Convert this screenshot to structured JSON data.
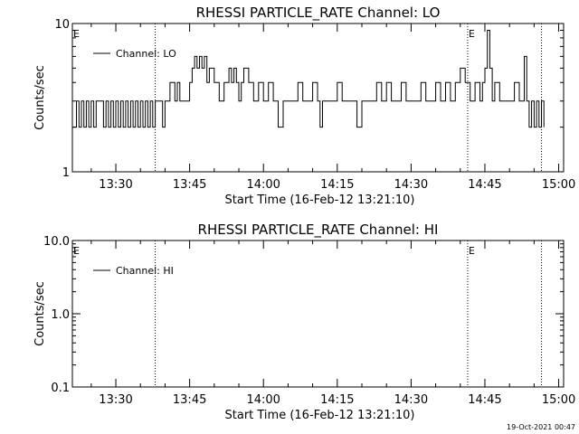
{
  "footer": {
    "timestamp": "19-Oct-2021 00:47"
  },
  "chart_data": [
    {
      "type": "line",
      "title": "RHESSI PARTICLE_RATE Channel: LO",
      "xlabel": "Start Time (16-Feb-12 13:21:10)",
      "ylabel": "Counts/sec",
      "y_scale": "log",
      "xlim": [
        "13:21:10",
        "15:01:00"
      ],
      "ylim": [
        1,
        10
      ],
      "x_tick_labels": [
        "13:30",
        "13:45",
        "14:00",
        "14:15",
        "14:30",
        "14:45",
        "15:00"
      ],
      "y_tick_labels": [
        "1",
        "10"
      ],
      "legend": {
        "position": "top-left",
        "entries": [
          "Channel: LO"
        ]
      },
      "event_marker_label": "E",
      "event_markers": [
        "13:21:10",
        "14:41:30"
      ],
      "vertical_dotted_lines": [
        "13:38:00",
        "14:41:30",
        "14:56:30"
      ],
      "grid": false,
      "series": [
        {
          "name": "Channel: LO",
          "points": [
            [
              "13:21:10",
              2
            ],
            [
              "13:22:00",
              3
            ],
            [
              "13:22:30",
              2
            ],
            [
              "13:23:00",
              3
            ],
            [
              "13:23:30",
              2
            ],
            [
              "13:24:00",
              3
            ],
            [
              "13:24:30",
              2
            ],
            [
              "13:25:00",
              3
            ],
            [
              "13:25:30",
              2
            ],
            [
              "13:26:00",
              3
            ],
            [
              "13:27:00",
              3
            ],
            [
              "13:27:30",
              2
            ],
            [
              "13:28:00",
              3
            ],
            [
              "13:28:30",
              2
            ],
            [
              "13:29:00",
              3
            ],
            [
              "13:29:30",
              2
            ],
            [
              "13:30:00",
              3
            ],
            [
              "13:30:30",
              2
            ],
            [
              "13:31:00",
              3
            ],
            [
              "13:31:30",
              2
            ],
            [
              "13:32:00",
              3
            ],
            [
              "13:32:30",
              2
            ],
            [
              "13:33:00",
              3
            ],
            [
              "13:33:30",
              2
            ],
            [
              "13:34:00",
              3
            ],
            [
              "13:34:30",
              2
            ],
            [
              "13:35:00",
              3
            ],
            [
              "13:35:30",
              2
            ],
            [
              "13:36:00",
              3
            ],
            [
              "13:36:30",
              2
            ],
            [
              "13:37:00",
              3
            ],
            [
              "13:37:30",
              2
            ],
            [
              "13:38:00",
              3
            ],
            [
              "13:39:00",
              3
            ],
            [
              "13:39:30",
              2
            ],
            [
              "13:40:00",
              3
            ],
            [
              "13:41:00",
              4
            ],
            [
              "13:42:00",
              3
            ],
            [
              "13:42:30",
              4
            ],
            [
              "13:43:00",
              3
            ],
            [
              "13:44:00",
              3
            ],
            [
              "13:45:00",
              4
            ],
            [
              "13:45:30",
              5
            ],
            [
              "13:46:00",
              6
            ],
            [
              "13:46:30",
              5
            ],
            [
              "13:47:00",
              6
            ],
            [
              "13:47:30",
              5
            ],
            [
              "13:48:00",
              6
            ],
            [
              "13:48:30",
              4
            ],
            [
              "13:49:00",
              5
            ],
            [
              "13:50:00",
              4
            ],
            [
              "13:51:00",
              3
            ],
            [
              "13:52:00",
              4
            ],
            [
              "13:53:00",
              5
            ],
            [
              "13:53:30",
              4
            ],
            [
              "13:54:00",
              5
            ],
            [
              "13:54:30",
              4
            ],
            [
              "13:55:00",
              3
            ],
            [
              "13:55:30",
              4
            ],
            [
              "13:56:00",
              5
            ],
            [
              "13:57:00",
              4
            ],
            [
              "13:58:00",
              3
            ],
            [
              "13:59:00",
              4
            ],
            [
              "14:00:00",
              3
            ],
            [
              "14:01:00",
              4
            ],
            [
              "14:02:00",
              3
            ],
            [
              "14:03:00",
              2
            ],
            [
              "14:04:00",
              3
            ],
            [
              "14:06:00",
              3
            ],
            [
              "14:07:00",
              4
            ],
            [
              "14:08:00",
              3
            ],
            [
              "14:09:00",
              3
            ],
            [
              "14:10:00",
              4
            ],
            [
              "14:11:00",
              3
            ],
            [
              "14:11:30",
              2
            ],
            [
              "14:12:00",
              3
            ],
            [
              "14:14:00",
              3
            ],
            [
              "14:15:00",
              4
            ],
            [
              "14:16:00",
              3
            ],
            [
              "14:18:00",
              3
            ],
            [
              "14:19:00",
              2
            ],
            [
              "14:20:00",
              3
            ],
            [
              "14:22:00",
              3
            ],
            [
              "14:23:00",
              4
            ],
            [
              "14:24:00",
              3
            ],
            [
              "14:25:00",
              4
            ],
            [
              "14:26:00",
              3
            ],
            [
              "14:27:00",
              3
            ],
            [
              "14:28:00",
              4
            ],
            [
              "14:29:00",
              3
            ],
            [
              "14:31:00",
              3
            ],
            [
              "14:32:00",
              4
            ],
            [
              "14:33:00",
              3
            ],
            [
              "14:34:00",
              3
            ],
            [
              "14:35:00",
              4
            ],
            [
              "14:36:00",
              3
            ],
            [
              "14:37:00",
              4
            ],
            [
              "14:38:00",
              3
            ],
            [
              "14:39:00",
              4
            ],
            [
              "14:40:00",
              5
            ],
            [
              "14:41:00",
              4
            ],
            [
              "14:42:00",
              3
            ],
            [
              "14:43:00",
              4
            ],
            [
              "14:44:00",
              3
            ],
            [
              "14:44:30",
              4
            ],
            [
              "14:45:00",
              5
            ],
            [
              "14:45:30",
              9
            ],
            [
              "14:46:00",
              5
            ],
            [
              "14:46:30",
              3
            ],
            [
              "14:47:00",
              4
            ],
            [
              "14:48:00",
              3
            ],
            [
              "14:50:00",
              3
            ],
            [
              "14:51:00",
              4
            ],
            [
              "14:52:00",
              3
            ],
            [
              "14:53:00",
              6
            ],
            [
              "14:53:30",
              3
            ],
            [
              "14:54:00",
              2
            ],
            [
              "14:54:30",
              3
            ],
            [
              "14:55:00",
              2
            ],
            [
              "14:55:30",
              3
            ],
            [
              "14:56:00",
              2
            ],
            [
              "14:56:30",
              3
            ],
            [
              "14:57:00",
              2
            ]
          ]
        }
      ]
    },
    {
      "type": "line",
      "title": "RHESSI PARTICLE_RATE Channel: HI",
      "xlabel": "Start Time (16-Feb-12 13:21:10)",
      "ylabel": "Counts/sec",
      "y_scale": "log",
      "xlim": [
        "13:21:10",
        "15:01:00"
      ],
      "ylim": [
        0.1,
        10.0
      ],
      "x_tick_labels": [
        "13:30",
        "13:45",
        "14:00",
        "14:15",
        "14:30",
        "14:45",
        "15:00"
      ],
      "y_tick_labels": [
        "0.1",
        "1.0",
        "10.0"
      ],
      "legend": {
        "position": "top-left",
        "entries": [
          "Channel: HI"
        ]
      },
      "event_marker_label": "E",
      "event_markers": [
        "13:21:10",
        "14:41:30"
      ],
      "vertical_dotted_lines": [
        "13:38:00",
        "14:41:30",
        "14:56:30"
      ],
      "grid": false,
      "series": [
        {
          "name": "Channel: HI",
          "points": []
        }
      ]
    }
  ]
}
